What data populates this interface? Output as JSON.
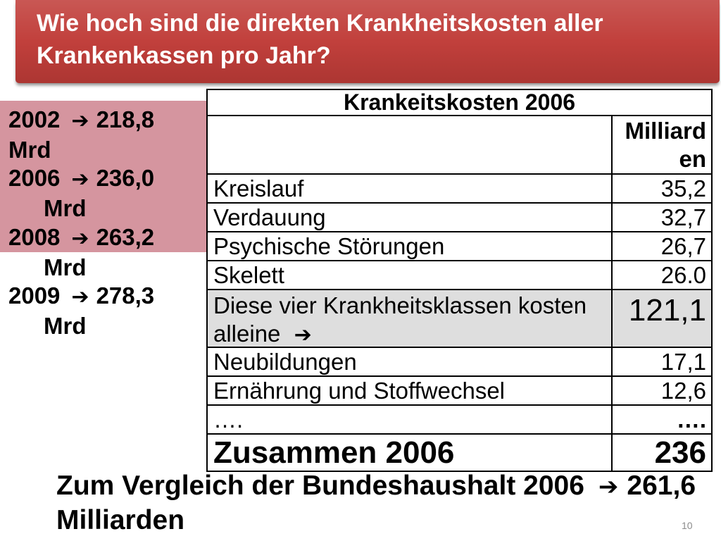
{
  "slide": {
    "title_lines": [
      "Wie hoch sind die direkten Krankheitskosten aller",
      "Krankenkassen pro Jahr?"
    ],
    "page_number": "10"
  },
  "icons": {
    "arrow": {
      "name": "arrow-right-icon",
      "glyph": "➔"
    }
  },
  "colors": {
    "title_banner": "#c03c38",
    "title_text": "#ffffff",
    "summary_box": "#d5959f",
    "highlight_row": "#dedede"
  },
  "sidebar": {
    "entries": [
      {
        "year": "2002",
        "value": "218,8",
        "unit": "Mrd"
      },
      {
        "year": "2006",
        "value": "236,0",
        "unit": "Mrd"
      },
      {
        "year": "2008",
        "value": "263,2",
        "unit": "Mrd"
      },
      {
        "year": "2009",
        "value": "278,3",
        "unit": "Mrd"
      }
    ]
  },
  "table": {
    "caption": "Krankeitskosten 2006",
    "unit_header_lines": [
      "Milliard",
      "en"
    ],
    "rows": [
      {
        "label": "Kreislauf",
        "value": "35,2"
      },
      {
        "label": "Verdauung",
        "value": "32,7"
      },
      {
        "label": "Psychische Störungen",
        "value": "26,7"
      },
      {
        "label": "Skelett",
        "value": "26.0"
      },
      {
        "label": "Diese vier Krankheitsklassen kosten alleine",
        "value": "121,1"
      },
      {
        "label": "Neubildungen",
        "value": "17,1"
      },
      {
        "label": "Ernährung und Stoffwechsel",
        "value": "12,6"
      },
      {
        "label": "….",
        "value": "…."
      }
    ],
    "total": {
      "label": "Zusammen 2006",
      "value": "236"
    }
  },
  "footer": {
    "comparison_text": "Zum Vergleich der Bundeshaushalt 2006",
    "comparison_value": "261,6",
    "comparison_line2": "Milliarden"
  }
}
